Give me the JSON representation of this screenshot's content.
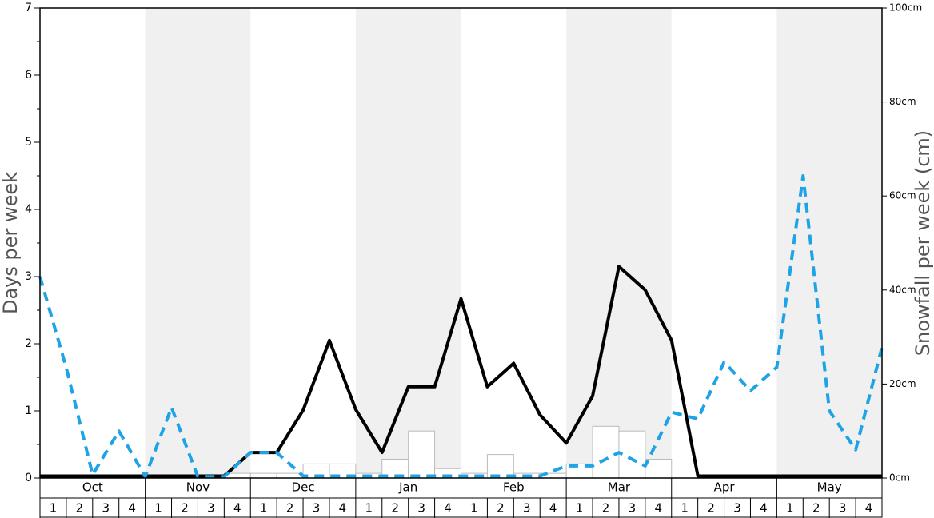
{
  "chart_data": {
    "type": "line",
    "y_label": "Days per week",
    "y2_label": "Snowfall per week (cm)",
    "months": [
      "Oct",
      "Nov",
      "Dec",
      "Jan",
      "Feb",
      "Mar",
      "Apr",
      "May"
    ],
    "weeks": [
      "1",
      "2",
      "3",
      "4"
    ],
    "ylim": [
      0,
      7
    ],
    "yticks": [
      0,
      1,
      2,
      3,
      4,
      5,
      6,
      7
    ],
    "y2lim": [
      0,
      100
    ],
    "y2ticks": [
      {
        "value": 0,
        "label": "0cm"
      },
      {
        "value": 20,
        "label": "20cm"
      },
      {
        "value": 40,
        "label": "40cm"
      },
      {
        "value": 60,
        "label": "60cm"
      },
      {
        "value": 80,
        "label": "80cm"
      },
      {
        "value": 100,
        "label": "100cm"
      }
    ],
    "band_color": "#f0f0f0",
    "bars": {
      "color": "#ffffff",
      "edge": "#bbbbbb",
      "values": [
        0,
        0,
        0,
        0,
        0,
        0,
        0,
        0.07,
        0.07,
        0.07,
        0.21,
        0.21,
        0.07,
        0.28,
        0.7,
        0.14,
        0.07,
        0.35,
        0.07,
        0.07,
        0.21,
        0.77,
        0.7,
        0.28,
        0,
        0,
        0,
        0,
        0,
        0,
        0,
        0
      ]
    },
    "series": [
      {
        "color": "#000000",
        "dashed": false,
        "values": [
          0.03,
          0.03,
          0.03,
          0.03,
          0.03,
          0.03,
          0.03,
          0.03,
          0.38,
          0.38,
          1.01,
          2.05,
          1.02,
          0.38,
          1.36,
          1.36,
          2.67,
          1.36,
          1.71,
          0.94,
          0.52,
          1.22,
          3.15,
          2.8,
          2.05,
          0.03,
          0.03,
          0.03,
          0.03,
          0.03,
          0.03,
          0.03,
          0.03
        ]
      },
      {
        "color": "#1ea3e6",
        "dashed": true,
        "values": [
          3.0,
          1.64,
          0.05,
          0.7,
          0.02,
          1.05,
          0.02,
          0.02,
          0.38,
          0.38,
          0.03,
          0.03,
          0.03,
          0.03,
          0.03,
          0.03,
          0.03,
          0.03,
          0.03,
          0.03,
          0.18,
          0.18,
          0.38,
          0.18,
          0.98,
          0.88,
          1.73,
          1.3,
          1.65,
          4.5,
          1.0,
          0.42,
          1.95
        ]
      }
    ]
  }
}
